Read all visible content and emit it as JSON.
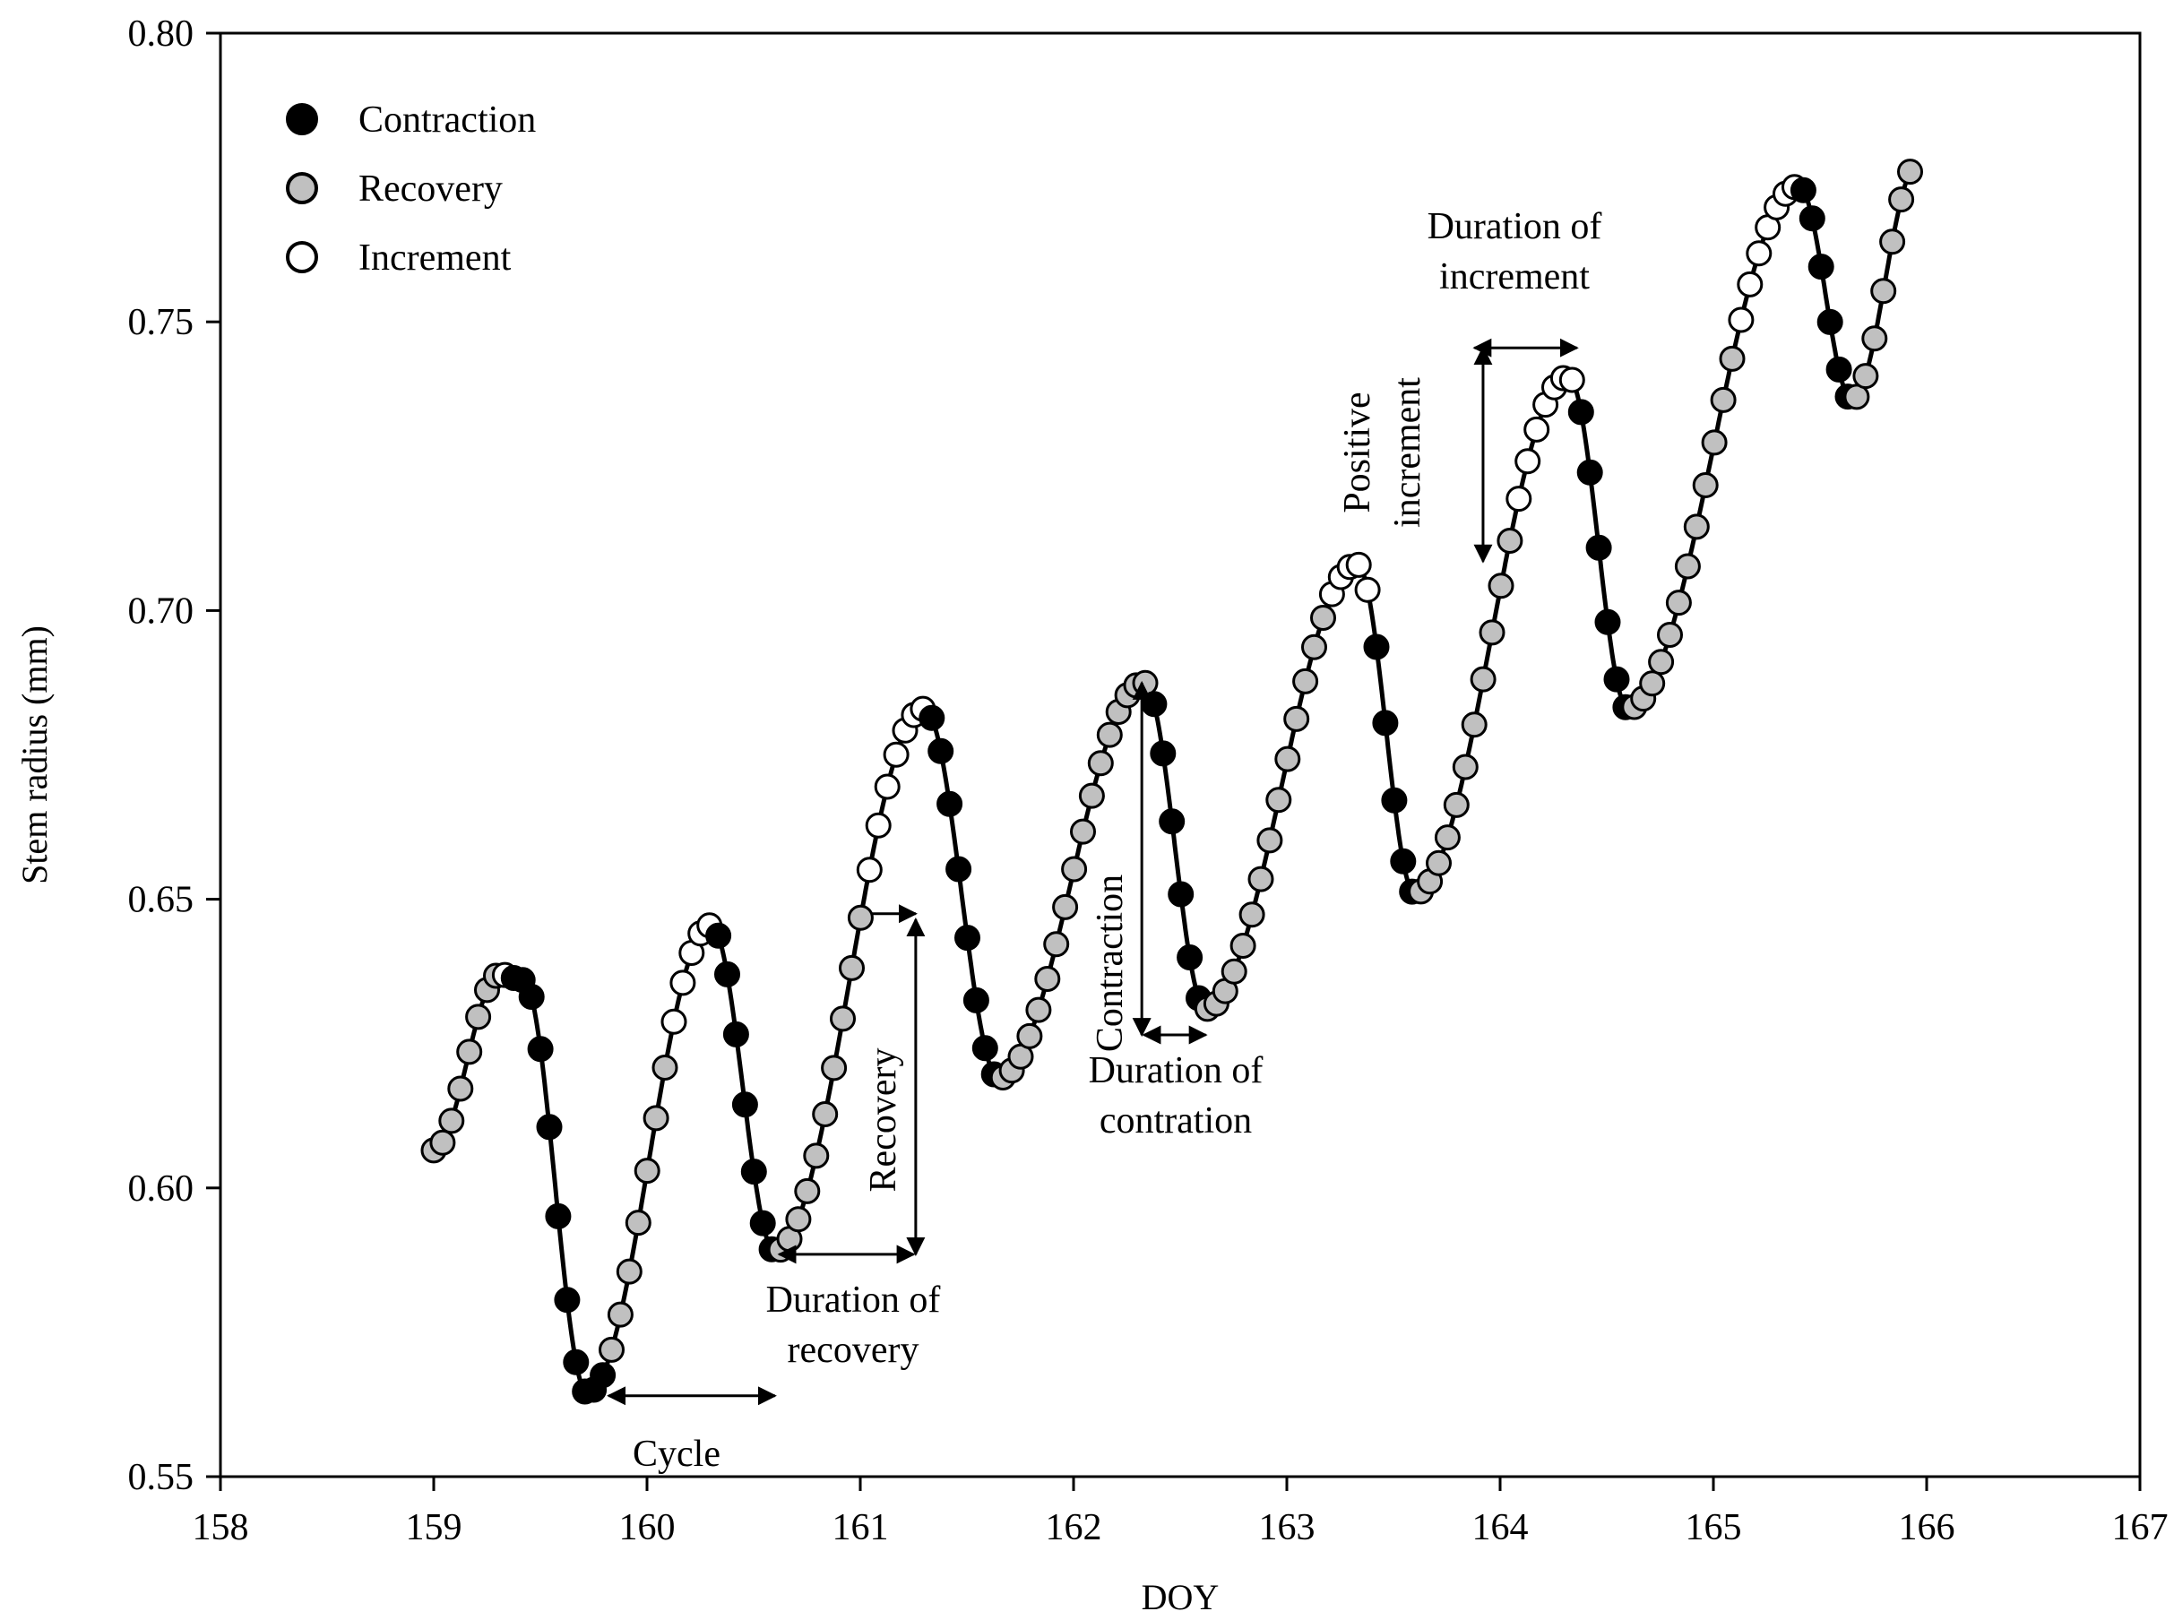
{
  "chart_data": {
    "type": "scatter",
    "xlabel": "DOY",
    "ylabel": "Stem radius (mm)",
    "xlim": [
      158,
      167
    ],
    "ylim": [
      0.55,
      0.8
    ],
    "xticks": [
      "158",
      "159",
      "160",
      "161",
      "162",
      "163",
      "164",
      "165",
      "166",
      "167"
    ],
    "yticks": [
      "0.55",
      "0.60",
      "0.65",
      "0.70",
      "0.75",
      "0.80"
    ],
    "legend_position": "top-left",
    "legend": [
      {
        "key": "contraction",
        "label": "Contraction",
        "fill": "#000000"
      },
      {
        "key": "recovery",
        "label": "Recovery",
        "fill": "#c0c0c0"
      },
      {
        "key": "increment",
        "label": "Increment",
        "fill": "#ffffff"
      }
    ],
    "curve_knots": [
      [
        159.0,
        0.6065
      ],
      [
        159.31,
        0.637
      ],
      [
        159.42,
        0.636
      ],
      [
        159.72,
        0.5645
      ],
      [
        160.3,
        0.6455
      ],
      [
        160.6,
        0.589
      ],
      [
        161.3,
        0.683
      ],
      [
        161.65,
        0.619
      ],
      [
        162.33,
        0.6875
      ],
      [
        162.62,
        0.631
      ],
      [
        163.33,
        0.708
      ],
      [
        163.6,
        0.651
      ],
      [
        164.32,
        0.7405
      ],
      [
        164.6,
        0.683
      ],
      [
        165.4,
        0.7735
      ],
      [
        165.65,
        0.7365
      ],
      [
        165.96,
        0.7775
      ]
    ],
    "phase_breaks": [
      [
        159.0,
        "recovery"
      ],
      [
        159.32,
        "increment"
      ],
      [
        159.37,
        "contraction"
      ],
      [
        159.8,
        "recovery"
      ],
      [
        160.1,
        "increment"
      ],
      [
        160.33,
        "contraction"
      ],
      [
        160.62,
        "recovery"
      ],
      [
        161.04,
        "increment"
      ],
      [
        161.33,
        "contraction"
      ],
      [
        161.65,
        "recovery"
      ],
      [
        162.36,
        "contraction"
      ],
      [
        162.62,
        "recovery"
      ],
      [
        163.2,
        "increment"
      ],
      [
        163.38,
        "contraction"
      ],
      [
        163.6,
        "recovery"
      ],
      [
        164.05,
        "increment"
      ],
      [
        164.34,
        "contraction"
      ],
      [
        164.6,
        "recovery"
      ],
      [
        165.1,
        "increment"
      ],
      [
        165.4,
        "contraction"
      ],
      [
        165.65,
        "recovery"
      ],
      [
        165.94,
        "increment"
      ]
    ],
    "sample_step_days": 0.0417,
    "annotations": [
      {
        "key": "cycle",
        "lines": [
          "Cycle"
        ]
      },
      {
        "key": "duration-recovery",
        "lines": [
          "Duration of",
          "recovery"
        ]
      },
      {
        "key": "recovery",
        "lines": [
          "Recovery"
        ]
      },
      {
        "key": "contraction",
        "lines": [
          "Contraction"
        ]
      },
      {
        "key": "duration-contraction",
        "lines": [
          "Duration of",
          "contration"
        ]
      },
      {
        "key": "positive-increment",
        "lines": [
          "Positive",
          "increment"
        ]
      },
      {
        "key": "duration-increment",
        "lines": [
          "Duration of",
          "increment"
        ]
      }
    ],
    "arrows": [
      {
        "key": "cycle",
        "from": [
          159.82,
          0.564
        ],
        "to": [
          160.6,
          0.564
        ]
      },
      {
        "key": "duration-recovery",
        "from": [
          160.62,
          0.5885
        ],
        "to": [
          161.25,
          0.5885
        ]
      },
      {
        "key": "recovery-span",
        "from": [
          161.26,
          0.5885
        ],
        "to": [
          161.26,
          0.6465
        ]
      },
      {
        "key": "recovery-tick",
        "from": [
          161.05,
          0.6475
        ],
        "to": [
          161.26,
          0.6475
        ]
      },
      {
        "key": "contraction-span",
        "from": [
          162.32,
          0.6875
        ],
        "to": [
          162.32,
          0.6265
        ]
      },
      {
        "key": "duration-contraction",
        "from": [
          162.33,
          0.6265
        ],
        "to": [
          162.62,
          0.6265
        ]
      },
      {
        "key": "positive-increment",
        "from": [
          163.92,
          0.7085
        ],
        "to": [
          163.92,
          0.7455
        ]
      },
      {
        "key": "duration-increment",
        "from": [
          163.88,
          0.7455
        ],
        "to": [
          164.36,
          0.7455
        ]
      }
    ]
  }
}
